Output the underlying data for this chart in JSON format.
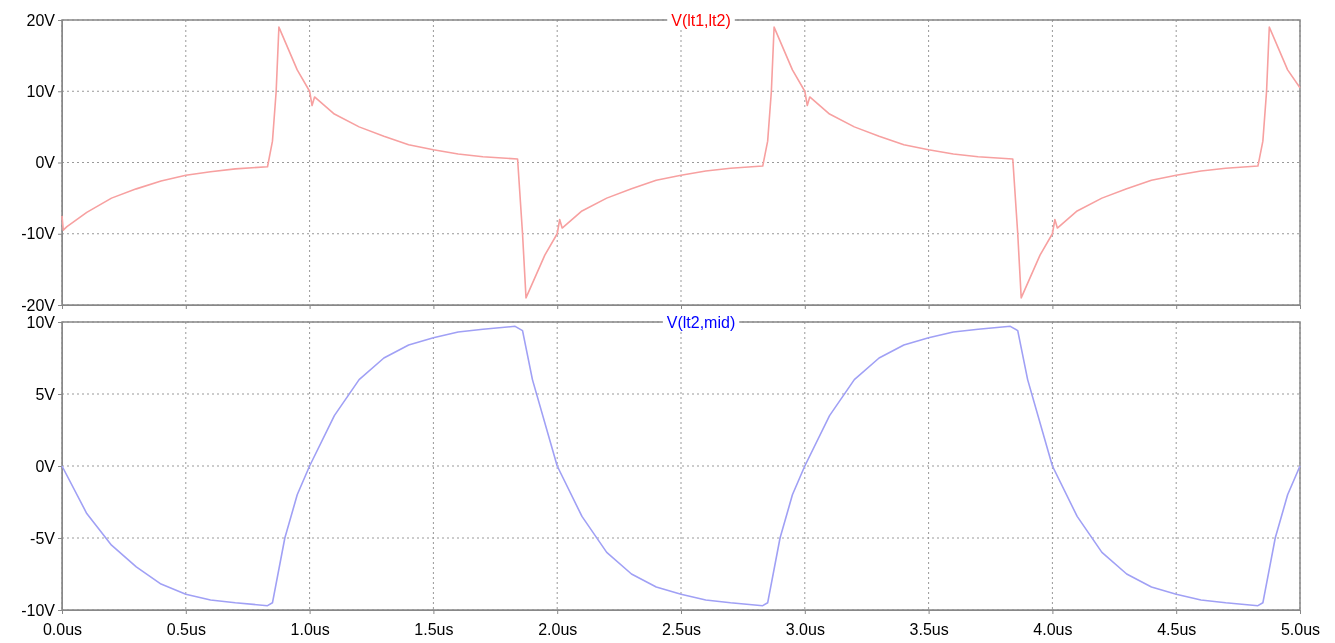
{
  "chart_data": [
    {
      "type": "line",
      "x": [
        0,
        0.005,
        0.02,
        0.1,
        0.2,
        0.3,
        0.4,
        0.5,
        0.6,
        0.7,
        0.83,
        0.85,
        0.865,
        0.876,
        0.95,
        1.0,
        1.01,
        1.02,
        1.1,
        1.2,
        1.3,
        1.4,
        1.5,
        1.6,
        1.7,
        1.84,
        1.86,
        1.874,
        1.95,
        2.0,
        2.01,
        2.02,
        2.1,
        2.2,
        2.3,
        2.4,
        2.5,
        2.6,
        2.7,
        2.83,
        2.85,
        2.865,
        2.876,
        2.95,
        3.0,
        3.01,
        3.02,
        3.1,
        3.2,
        3.3,
        3.4,
        3.5,
        3.6,
        3.7,
        3.84,
        3.86,
        3.874,
        3.95,
        4.0,
        4.01,
        4.02,
        4.1,
        4.2,
        4.3,
        4.4,
        4.5,
        4.6,
        4.7,
        4.83,
        4.85,
        4.865,
        4.876,
        4.95,
        5.0
      ],
      "series": [
        {
          "name": "V(lt1,lt2)",
          "color": "#f7a0a0",
          "values": [
            -7.5,
            -9.5,
            -9,
            -7,
            -5,
            -3.7,
            -2.6,
            -1.8,
            -1.3,
            -0.9,
            -0.6,
            3,
            10,
            19,
            13,
            10,
            8,
            9.2,
            6.8,
            5,
            3.7,
            2.5,
            1.8,
            1.2,
            0.8,
            0.5,
            -10,
            -19,
            -13,
            -10,
            -8,
            -9.2,
            -6.8,
            -5,
            -3.7,
            -2.5,
            -1.8,
            -1.2,
            -0.8,
            -0.5,
            3,
            10,
            19,
            13,
            10,
            8,
            9.2,
            6.8,
            5,
            3.7,
            2.5,
            1.8,
            1.2,
            0.8,
            0.5,
            -10,
            -19,
            -13,
            -10,
            -8,
            -9.2,
            -6.8,
            -5,
            -3.7,
            -2.5,
            -1.8,
            -1.2,
            -0.8,
            -0.5,
            3,
            10,
            19,
            13,
            10.5
          ]
        }
      ],
      "xlim": [
        0,
        5
      ],
      "xticks": [
        {
          "value": 0,
          "label": null
        },
        {
          "value": 0.5,
          "label": null
        },
        {
          "value": 1,
          "label": null
        },
        {
          "value": 1.5,
          "label": null
        },
        {
          "value": 2,
          "label": null
        },
        {
          "value": 2.5,
          "label": null
        },
        {
          "value": 3,
          "label": null
        },
        {
          "value": 3.5,
          "label": null
        },
        {
          "value": 4,
          "label": null
        },
        {
          "value": 4.5,
          "label": null
        },
        {
          "value": 5,
          "label": null
        }
      ],
      "ylim": [
        -20,
        20
      ],
      "yticks": [
        {
          "value": -20,
          "label": "-20V"
        },
        {
          "value": -10,
          "label": "-10V"
        },
        {
          "value": 0,
          "label": "0V"
        },
        {
          "value": 10,
          "label": "10V"
        },
        {
          "value": 20,
          "label": "20V"
        }
      ],
      "tick_labels": "y",
      "grid": true,
      "legend": "top"
    },
    {
      "type": "line",
      "x": [
        0,
        0.1,
        0.2,
        0.3,
        0.4,
        0.5,
        0.6,
        0.7,
        0.83,
        0.85,
        0.9,
        0.95,
        1.0,
        1.1,
        1.2,
        1.3,
        1.4,
        1.5,
        1.6,
        1.7,
        1.83,
        1.86,
        1.9,
        2.0,
        2.1,
        2.2,
        2.3,
        2.4,
        2.5,
        2.6,
        2.7,
        2.83,
        2.85,
        2.9,
        2.95,
        3.0,
        3.1,
        3.2,
        3.3,
        3.4,
        3.5,
        3.6,
        3.7,
        3.83,
        3.86,
        3.9,
        4.0,
        4.1,
        4.2,
        4.3,
        4.4,
        4.5,
        4.6,
        4.7,
        4.83,
        4.85,
        4.9,
        4.95,
        5.0
      ],
      "series": [
        {
          "name": "V(lt2,mid)",
          "color": "#a0a0f5",
          "values": [
            0,
            -3.3,
            -5.5,
            -7,
            -8.2,
            -8.9,
            -9.3,
            -9.5,
            -9.7,
            -9.5,
            -5,
            -2,
            0,
            3.5,
            6,
            7.5,
            8.4,
            8.9,
            9.3,
            9.5,
            9.7,
            9.4,
            6,
            0,
            -3.5,
            -6,
            -7.5,
            -8.4,
            -8.9,
            -9.3,
            -9.5,
            -9.7,
            -9.5,
            -5,
            -2,
            0,
            3.5,
            6,
            7.5,
            8.4,
            8.9,
            9.3,
            9.5,
            9.7,
            9.4,
            6,
            0,
            -3.5,
            -6,
            -7.5,
            -8.4,
            -8.9,
            -9.3,
            -9.5,
            -9.7,
            -9.5,
            -5,
            -2,
            0
          ]
        }
      ],
      "xlim": [
        0,
        5
      ],
      "xticks": [
        {
          "value": 0,
          "label": "0.0us"
        },
        {
          "value": 0.5,
          "label": "0.5us"
        },
        {
          "value": 1,
          "label": "1.0us"
        },
        {
          "value": 1.5,
          "label": "1.5us"
        },
        {
          "value": 2,
          "label": "2.0us"
        },
        {
          "value": 2.5,
          "label": "2.5us"
        },
        {
          "value": 3,
          "label": "3.0us"
        },
        {
          "value": 3.5,
          "label": "3.5us"
        },
        {
          "value": 4,
          "label": "4.0us"
        },
        {
          "value": 4.5,
          "label": "4.5us"
        },
        {
          "value": 5,
          "label": "5.0us"
        }
      ],
      "ylim": [
        -10,
        10
      ],
      "yticks": [
        {
          "value": -10,
          "label": "-10V"
        },
        {
          "value": -5,
          "label": "-5V"
        },
        {
          "value": 0,
          "label": "0V"
        },
        {
          "value": 5,
          "label": "5V"
        },
        {
          "value": 10,
          "label": "10V"
        }
      ],
      "grid": true,
      "legend": "top"
    }
  ]
}
